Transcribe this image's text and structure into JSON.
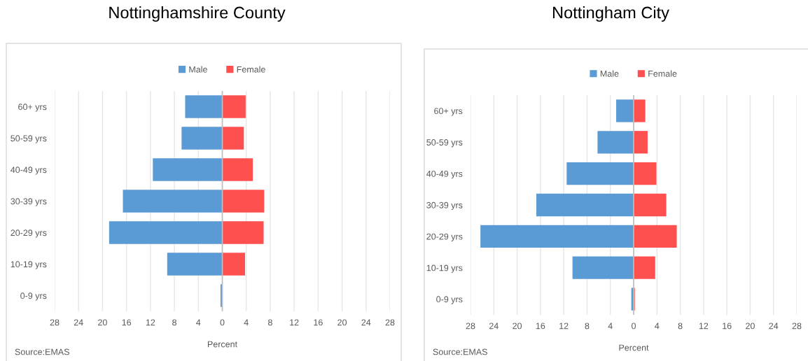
{
  "chart_data": [
    {
      "type": "bar",
      "orientation": "horizontal",
      "stacked": true,
      "title": "Nottinghamshire County",
      "xlabel": "Percent",
      "annotations": [
        "Source:EMAS"
      ],
      "legend": "top",
      "grid": "x",
      "categories": [
        "60+ yrs",
        "50-59 yrs",
        "40-49 yrs",
        "30-39 yrs",
        "20-29 yrs",
        "10-19 yrs",
        "0-9 yrs"
      ],
      "series": [
        {
          "name": "Male",
          "color": "#5b9bd5",
          "values": [
            -6.2,
            -6.8,
            -11.6,
            -16.6,
            -18.9,
            -9.2,
            -0.3
          ]
        },
        {
          "name": "Female",
          "color": "#ff5050",
          "values": [
            3.9,
            3.6,
            5.1,
            7.0,
            6.9,
            3.8,
            0
          ]
        }
      ],
      "xlim": [
        -28,
        28
      ],
      "xticks": [
        {
          "value": -28,
          "label": "28"
        },
        {
          "value": -24,
          "label": "24"
        },
        {
          "value": -20,
          "label": "20"
        },
        {
          "value": -16,
          "label": "16"
        },
        {
          "value": -12,
          "label": "12"
        },
        {
          "value": -8,
          "label": "8"
        },
        {
          "value": -4,
          "label": "4"
        },
        0,
        4,
        8,
        12,
        16,
        20,
        24,
        28
      ]
    },
    {
      "type": "bar",
      "orientation": "horizontal",
      "stacked": true,
      "title": "Nottingham City",
      "xlabel": "Percent",
      "annotations": [
        "Source:EMAS"
      ],
      "legend": "top",
      "grid": "x",
      "categories": [
        "60+ yrs",
        "50-59 yrs",
        "40-49 yrs",
        "30-39 yrs",
        "20-29 yrs",
        "10-19 yrs",
        "0-9 yrs"
      ],
      "series": [
        {
          "name": "Male",
          "color": "#5b9bd5",
          "values": [
            -3.0,
            -6.2,
            -11.5,
            -16.7,
            -26.3,
            -10.5,
            -0.4
          ]
        },
        {
          "name": "Female",
          "color": "#ff5050",
          "values": [
            2.0,
            2.4,
            3.9,
            5.6,
            7.4,
            3.7,
            0.2
          ]
        }
      ],
      "xlim": [
        -28,
        28
      ],
      "xticks": [
        {
          "value": -28,
          "label": "28"
        },
        {
          "value": -24,
          "label": "24"
        },
        {
          "value": -20,
          "label": "20"
        },
        {
          "value": -16,
          "label": "16"
        },
        {
          "value": -12,
          "label": "12"
        },
        {
          "value": -8,
          "label": "8"
        },
        {
          "value": -4,
          "label": "4"
        },
        0,
        4,
        8,
        12,
        16,
        20,
        24,
        28
      ]
    }
  ]
}
